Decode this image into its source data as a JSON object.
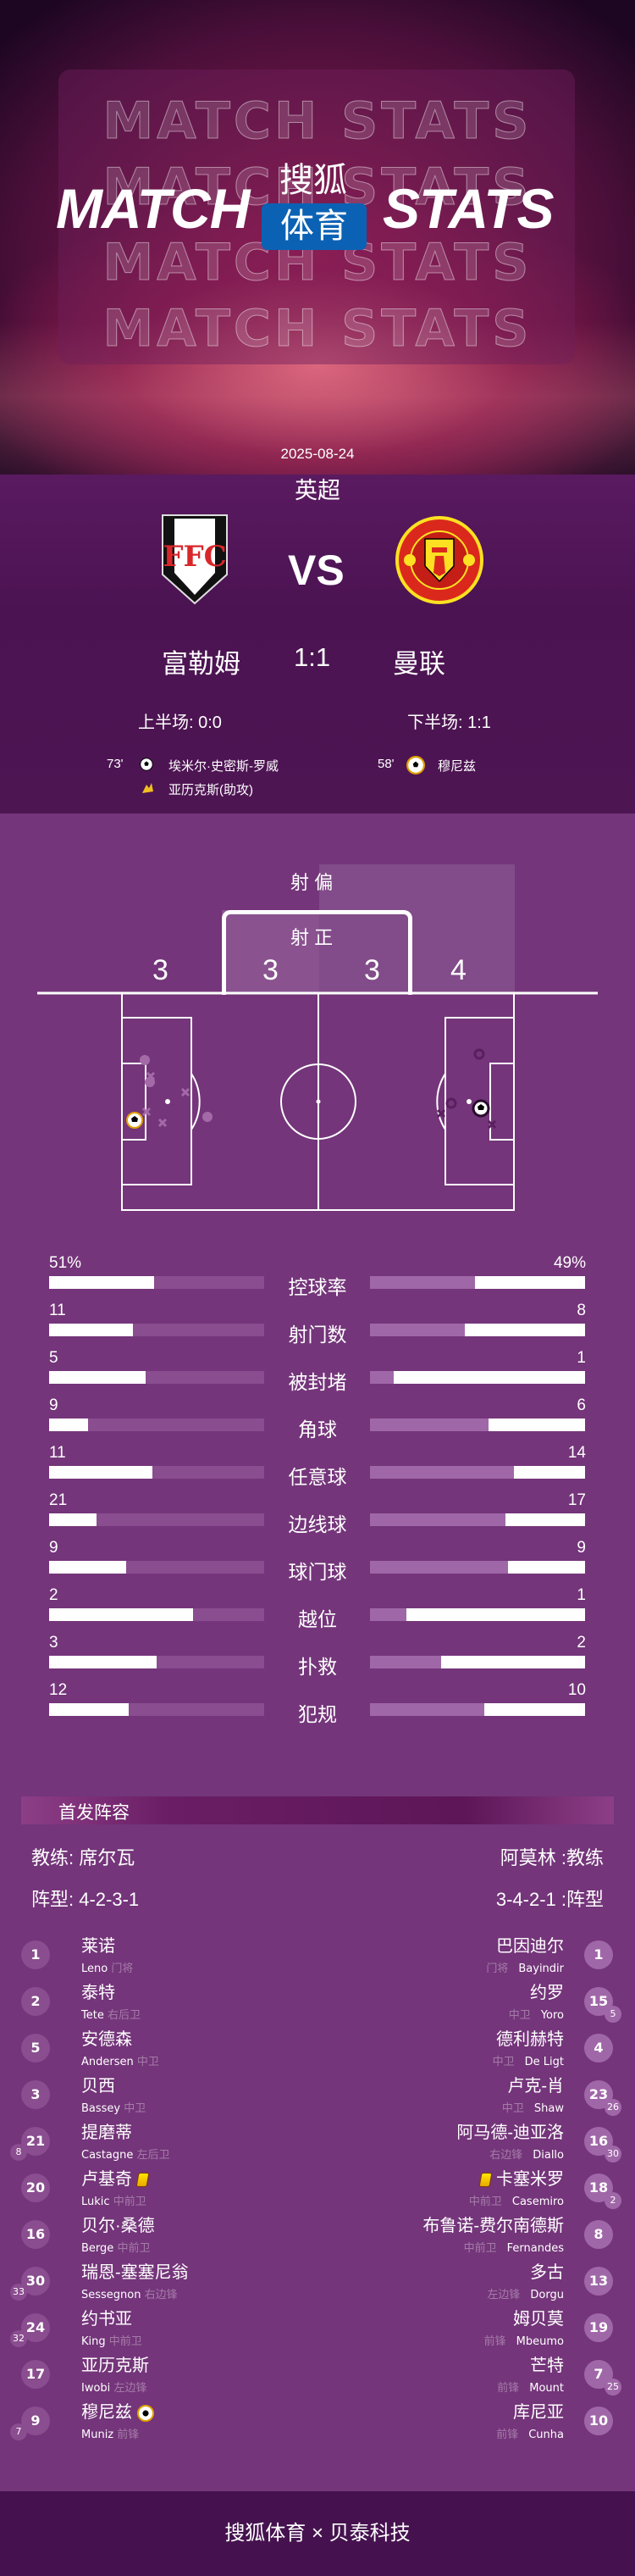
{
  "header": {
    "title_left": "MATCH",
    "title_right": "STATS",
    "background_text": "MATCH STATS",
    "logo_top": "搜狐",
    "logo_bottom": "体育",
    "logo_color": "#0b62b4"
  },
  "match": {
    "date": "2025-08-24",
    "league": "英超",
    "vs": "VS",
    "home": {
      "name": "富勒姆",
      "crest": "fulham-crest"
    },
    "away": {
      "name": "曼联",
      "crest": "manchester-united-crest"
    },
    "score": "1:1",
    "first_half": "上半场: 0:0",
    "second_half": "下半场: 1:1",
    "events": {
      "home": [
        {
          "minute": "73'",
          "icon": "goal-ball-icon",
          "text": "埃米尔·史密斯-罗威"
        },
        {
          "minute": "",
          "icon": "assist-boot-icon",
          "text": "亚历克斯(助攻)"
        }
      ],
      "away": [
        {
          "minute": "58'",
          "icon": "goal-ball-icon",
          "text": "穆尼兹"
        }
      ]
    }
  },
  "shot_map": {
    "off_target_label": "射 偏",
    "on_target_label": "射 正",
    "home_off_target": "3",
    "home_on_target": "3",
    "away_on_target": "3",
    "away_off_target": "4"
  },
  "stats": [
    {
      "label": "控球率",
      "home": "51%",
      "away": "49%",
      "home_fill": 0.49,
      "away_fill": 0.51
    },
    {
      "label": "射门数",
      "home": "11",
      "away": "8",
      "home_fill": 0.39,
      "away_fill": 0.56
    },
    {
      "label": "被封堵",
      "home": "5",
      "away": "1",
      "home_fill": 0.45,
      "away_fill": 0.89
    },
    {
      "label": "角球",
      "home": "9",
      "away": "6",
      "home_fill": 0.18,
      "away_fill": 0.45
    },
    {
      "label": "任意球",
      "home": "11",
      "away": "14",
      "home_fill": 0.48,
      "away_fill": 0.33
    },
    {
      "label": "边线球",
      "home": "21",
      "away": "17",
      "home_fill": 0.22,
      "away_fill": 0.37
    },
    {
      "label": "球门球",
      "home": "9",
      "away": "9",
      "home_fill": 0.36,
      "away_fill": 0.36
    },
    {
      "label": "越位",
      "home": "2",
      "away": "1",
      "home_fill": 0.67,
      "away_fill": 0.83
    },
    {
      "label": "扑救",
      "home": "3",
      "away": "2",
      "home_fill": 0.5,
      "away_fill": 0.67
    },
    {
      "label": "犯规",
      "home": "12",
      "away": "10",
      "home_fill": 0.37,
      "away_fill": 0.47
    }
  ],
  "lineups": {
    "title": "首发阵容",
    "home": {
      "coach": "教练: 席尔瓦",
      "formation": "阵型: 4-2-3-1",
      "players": [
        {
          "number": "1",
          "name": "莱诺",
          "en": "Leno",
          "position": "门将"
        },
        {
          "number": "2",
          "name": "泰特",
          "en": "Tete",
          "position": "右后卫"
        },
        {
          "number": "5",
          "name": "安德森",
          "en": "Andersen",
          "position": "中卫"
        },
        {
          "number": "3",
          "name": "贝西",
          "en": "Bassey",
          "position": "中卫"
        },
        {
          "number": "21",
          "name": "提磨蒂",
          "en": "Castagne",
          "position": "左后卫",
          "sub": "8"
        },
        {
          "number": "20",
          "name": "卢基奇",
          "en": "Lukic",
          "position": "中前卫",
          "card": "yellow"
        },
        {
          "number": "16",
          "name": "贝尔·桑德",
          "en": "Berge",
          "position": "中前卫"
        },
        {
          "number": "30",
          "name": "瑞恩-塞塞尼翁",
          "en": "Sessegnon",
          "position": "右边锋",
          "sub": "33"
        },
        {
          "number": "24",
          "name": "约书亚",
          "en": "King",
          "position": "中前卫",
          "sub": "32"
        },
        {
          "number": "17",
          "name": "亚历克斯",
          "en": "Iwobi",
          "position": "左边锋"
        },
        {
          "number": "9",
          "name": "穆尼兹",
          "en": "Muniz",
          "position": "前锋",
          "sub": "7",
          "goal": true
        }
      ]
    },
    "away": {
      "coach": "阿莫林 :教练",
      "formation": "3-4-2-1 :阵型",
      "players": [
        {
          "number": "1",
          "name": "巴因迪尔",
          "en": "Bayindir",
          "position": "门将"
        },
        {
          "number": "15",
          "name": "约罗",
          "en": "Yoro",
          "position": "中卫",
          "sub": "5"
        },
        {
          "number": "4",
          "name": "德利赫特",
          "en": "De Ligt",
          "position": "中卫"
        },
        {
          "number": "23",
          "name": "卢克-肖",
          "en": "Shaw",
          "position": "中卫",
          "sub": "26"
        },
        {
          "number": "16",
          "name": "阿马德-迪亚洛",
          "en": "Diallo",
          "position": "右边锋",
          "sub": "30"
        },
        {
          "number": "18",
          "name": "卡塞米罗",
          "en": "Casemiro",
          "position": "中前卫",
          "sub": "2",
          "card": "yellow"
        },
        {
          "number": "8",
          "name": "布鲁诺-费尔南德斯",
          "en": "Fernandes",
          "position": "中前卫"
        },
        {
          "number": "13",
          "name": "多古",
          "en": "Dorgu",
          "position": "左边锋"
        },
        {
          "number": "19",
          "name": "姆贝莫",
          "en": "Mbeumo",
          "position": "前锋"
        },
        {
          "number": "7",
          "name": "芒特",
          "en": "Mount",
          "position": "前锋",
          "sub": "25"
        },
        {
          "number": "10",
          "name": "库尼亚",
          "en": "Cunha",
          "position": "前锋"
        }
      ]
    }
  },
  "footer": {
    "text": "搜狐体育 × 贝泰科技"
  },
  "colors": {
    "background": "#74357a",
    "footer": "#45124f",
    "home_track": "#8a4d8f",
    "away_track": "#a067a8",
    "yellow_card": "#ffd400"
  }
}
